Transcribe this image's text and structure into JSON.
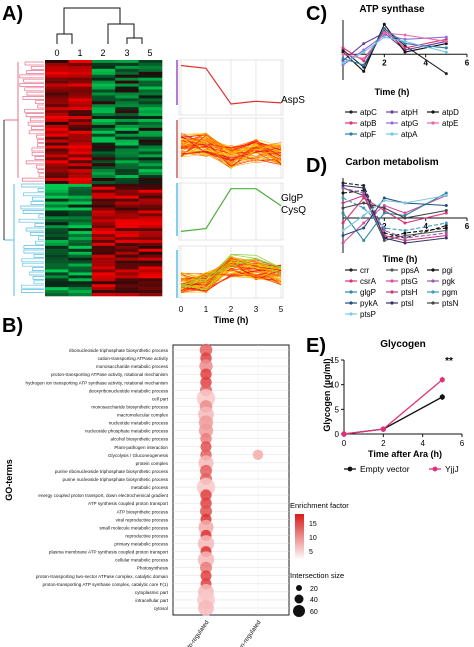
{
  "panels": {
    "A": {
      "letter": "A)",
      "dendro_labels": [
        "0",
        "1",
        "2",
        "3",
        "5"
      ],
      "line_labels": [
        "AspS",
        "GlgP",
        "CysQ"
      ],
      "xticks": [
        "0",
        "1",
        "2",
        "3",
        "5"
      ],
      "xlabel": "Time (h)",
      "colors": {
        "top_cluster": "#e8708a",
        "bottom_cluster": "#5bbfe0",
        "red_line": "#e03030",
        "green_line": "#4cae3a"
      }
    },
    "B": {
      "letter": "B)",
      "ylabel": "GO-terms",
      "legend_title_color": "Enrichment factor",
      "color_ticks": [
        "15",
        "10",
        "5"
      ],
      "legend_title_size": "Intersection size",
      "size_ticks": [
        "20",
        "40",
        "60"
      ]
    },
    "C": {
      "letter": "C)"
    },
    "D": {
      "letter": "D)"
    },
    "E": {
      "letter": "E)",
      "annotation": "**"
    }
  },
  "chart_data": [
    {
      "panel": "A",
      "type": "heatmap",
      "columns": [
        "0",
        "1",
        "2",
        "3",
        "5"
      ],
      "clusters": [
        {
          "name": "upper",
          "pattern": "red at 0-1 h, green at 2-5 h"
        },
        {
          "name": "lower",
          "pattern": "green at 0-1 h, red at 2-5 h"
        }
      ]
    },
    {
      "panel": "A",
      "type": "line",
      "x": [
        "0",
        "1",
        "2",
        "3",
        "5"
      ],
      "series": [
        {
          "name": "AspS",
          "values": [
            0.9,
            0.85,
            0.2,
            0.25,
            0.22
          ]
        },
        {
          "name": "GlgP CysQ",
          "values": [
            0.15,
            0.2,
            0.9,
            0.9,
            0.6
          ]
        }
      ]
    },
    {
      "panel": "B",
      "type": "scatter",
      "columns": [
        "Up-regulated",
        "Down-regulated"
      ],
      "terms": [
        {
          "term": "ribonucleoside triphosphate biosynthetic process",
          "up": [
            12,
            25
          ]
        },
        {
          "term": "cation-transporting ATPase activity",
          "up": [
            14,
            20
          ]
        },
        {
          "term": "monosaccharide metabolic process",
          "up": [
            9,
            30
          ]
        },
        {
          "term": "proton-transporting ATPase activity, rotational mechanism",
          "up": [
            14,
            20
          ]
        },
        {
          "term": "hydrogen ion transporting ATP synthase activity, rotational mechanism",
          "up": [
            14,
            20
          ]
        },
        {
          "term": "deoxyribonucleotide metabolic process",
          "up": [
            12,
            22
          ]
        },
        {
          "term": "cell part",
          "up": [
            5,
            65
          ]
        },
        {
          "term": "monosaccharide biosynthetic process",
          "up": [
            9,
            25
          ]
        },
        {
          "term": "macromolecular complex",
          "up": [
            6,
            45
          ]
        },
        {
          "term": "nucleotide metabolic process",
          "up": [
            8,
            35
          ]
        },
        {
          "term": "nucleoside phosphate metabolic process",
          "up": [
            8,
            35
          ]
        },
        {
          "term": "alcohol biosynthetic process",
          "up": [
            10,
            20
          ]
        },
        {
          "term": "Plant-pathogen interaction",
          "up": [
            13,
            18
          ]
        },
        {
          "term": "Glycolysis / Gluconeogenesis",
          "up": [
            12,
            20
          ],
          "down": [
            7,
            15
          ]
        },
        {
          "term": "protein complex",
          "up": [
            6,
            40
          ]
        },
        {
          "term": "purine ribonucleoside triphosphate biosynthetic process",
          "up": [
            12,
            22
          ]
        },
        {
          "term": "purine nucleoside triphosphate biosynthetic process",
          "up": [
            12,
            22
          ]
        },
        {
          "term": "metabolic process",
          "up": [
            5,
            65
          ]
        },
        {
          "term": "energy coupled proton transport, down electrochemical gradient",
          "up": [
            14,
            20
          ]
        },
        {
          "term": "ATP synthesis coupled proton transport",
          "up": [
            14,
            20
          ]
        },
        {
          "term": "ATP biosynthetic process",
          "up": [
            13,
            22
          ]
        },
        {
          "term": "viral reproductive process",
          "up": [
            15,
            18
          ]
        },
        {
          "term": "small molecule metabolic process",
          "up": [
            7,
            40
          ]
        },
        {
          "term": "reproductive process",
          "up": [
            15,
            18
          ]
        },
        {
          "term": "primary metabolic process",
          "up": [
            6,
            50
          ]
        },
        {
          "term": "plasma membrane ATP synthesis coupled proton transport",
          "up": [
            15,
            18
          ]
        },
        {
          "term": "cellular metabolic process",
          "up": [
            6,
            50
          ]
        },
        {
          "term": "Photosynthesis",
          "up": [
            10,
            22
          ]
        },
        {
          "term": "proton-transporting two-sector ATPase complex, catalytic domain",
          "up": [
            14,
            18
          ]
        },
        {
          "term": "proton-transporting ATP synthase complex, catalytic core F(1)",
          "up": [
            14,
            18
          ]
        },
        {
          "term": "cytoplasmic part",
          "up": [
            6,
            45
          ]
        },
        {
          "term": "intracellular part",
          "up": [
            5,
            60
          ]
        },
        {
          "term": "cytosol",
          "up": [
            6,
            45
          ]
        }
      ]
    },
    {
      "panel": "C",
      "type": "line",
      "title": "ATP synthase",
      "xlabel": "Time (h)",
      "xlim": [
        0,
        6
      ],
      "xticks": [
        2,
        4,
        6
      ],
      "x": [
        0,
        1,
        2,
        3,
        5
      ],
      "series": [
        {
          "name": "atpC",
          "color": "#222222",
          "marker": "dot",
          "values": [
            0.2,
            -0.6,
            1.2,
            0.4,
            -0.9
          ]
        },
        {
          "name": "atpH",
          "color": "#6a3fa0",
          "marker": "dot",
          "values": [
            -0.3,
            0.5,
            1.0,
            0.2,
            0.6
          ]
        },
        {
          "name": "atpD",
          "color": "#111111",
          "marker": "dot",
          "values": [
            0.1,
            -0.8,
            1.4,
            0.1,
            0.5
          ]
        },
        {
          "name": "atpB",
          "color": "#e0327a",
          "marker": "dot",
          "values": [
            0.3,
            -0.3,
            1.1,
            0.3,
            0.7
          ]
        },
        {
          "name": "atpG",
          "color": "#9370db",
          "marker": "dot",
          "values": [
            -0.5,
            0.2,
            0.9,
            0.7,
            0.8
          ]
        },
        {
          "name": "atpE",
          "color": "#e56ba8",
          "marker": "dot",
          "values": [
            0.0,
            -0.2,
            1.0,
            0.9,
            0.6
          ]
        },
        {
          "name": "atpF",
          "color": "#2a7fa8",
          "marker": "dot",
          "values": [
            -0.2,
            -0.5,
            1.2,
            0.5,
            0.3
          ]
        },
        {
          "name": "atpA",
          "color": "#6ec6e8",
          "marker": "dot",
          "values": [
            -0.4,
            0.1,
            0.8,
            0.6,
            0.1
          ]
        }
      ]
    },
    {
      "panel": "D",
      "type": "line",
      "title": "Carbon metabolism",
      "xlabel": "Time (h)",
      "xlim": [
        0,
        6
      ],
      "xticks": [
        2,
        4,
        6
      ],
      "x": [
        0,
        1,
        2,
        3,
        5
      ],
      "series": [
        {
          "name": "crr",
          "color": "#222222",
          "values": [
            1.4,
            1.3,
            -0.6,
            -0.8,
            -0.3
          ]
        },
        {
          "name": "ppsA",
          "color": "#555555",
          "values": [
            1.2,
            0.9,
            -0.9,
            -0.7,
            -0.5
          ]
        },
        {
          "name": "pgi",
          "color": "#111111",
          "values": [
            1.0,
            1.1,
            -0.8,
            -0.6,
            -0.4
          ]
        },
        {
          "name": "csrA",
          "color": "#e0327a",
          "values": [
            -0.2,
            0.8,
            0.3,
            -0.2,
            0.2
          ]
        },
        {
          "name": "ptsG",
          "color": "#d94da0",
          "values": [
            -1.0,
            -0.2,
            0.5,
            0.2,
            0.9
          ]
        },
        {
          "name": "pgk",
          "color": "#9b59b6",
          "values": [
            1.2,
            1.0,
            -0.5,
            -0.8,
            -0.6
          ]
        },
        {
          "name": "glgP",
          "color": "#2d8aa6",
          "values": [
            0.2,
            -0.9,
            0.2,
            0.1,
            1.0
          ]
        },
        {
          "name": "ptsH",
          "color": "#c0397e",
          "values": [
            0.6,
            0.9,
            -0.7,
            -0.9,
            -0.7
          ]
        },
        {
          "name": "pgm",
          "color": "#3a9bc0",
          "values": [
            0.8,
            0.4,
            -0.4,
            -0.5,
            -0.2
          ]
        },
        {
          "name": "pykA",
          "color": "#1f4f7a",
          "values": [
            -0.7,
            -0.4,
            0.8,
            0.6,
            0.5
          ]
        },
        {
          "name": "ptsI",
          "color": "#333366",
          "values": [
            1.3,
            1.2,
            -0.8,
            -1.0,
            -0.8
          ]
        },
        {
          "name": "ptsN",
          "color": "#444444",
          "values": [
            0.4,
            0.6,
            0.4,
            0.0,
            0.3
          ]
        },
        {
          "name": "ptsP",
          "color": "#7fc9e6",
          "values": [
            -0.5,
            0.1,
            0.7,
            0.6,
            0.9
          ]
        }
      ]
    },
    {
      "panel": "E",
      "type": "line",
      "title": "Glycogen",
      "xlabel": "Time after Ara (h)",
      "ylabel": "Glycogen (µg/ml)",
      "xlim": [
        0,
        6
      ],
      "ylim": [
        0,
        15
      ],
      "xticks": [
        0,
        2,
        4,
        6
      ],
      "yticks": [
        0,
        5,
        10,
        15
      ],
      "x": [
        0,
        2,
        5
      ],
      "series": [
        {
          "name": "Empty vector",
          "color": "#111111",
          "values": [
            0,
            1.0,
            7.5
          ],
          "errors": [
            0,
            0.2,
            0.6
          ]
        },
        {
          "name": "YjjJ",
          "color": "#e0327a",
          "values": [
            0,
            1.0,
            11.0
          ],
          "errors": [
            0,
            0.2,
            0.6
          ]
        }
      ]
    }
  ]
}
